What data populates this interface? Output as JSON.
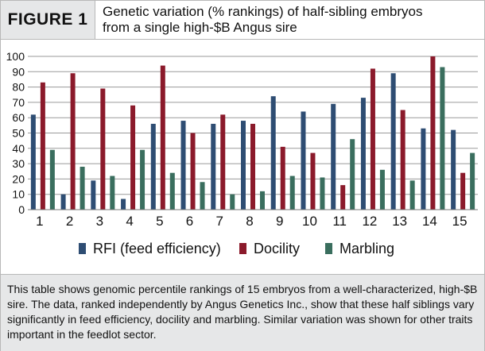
{
  "header": {
    "figure_label": "FIGURE 1",
    "title_line1": "Genetic variation (% rankings) of half-sibling embryos",
    "title_line2": "from a single high-$B Angus sire"
  },
  "caption": {
    "text": "This table shows genomic percentile rankings of 15 embryos from a well-characterized, high-$B sire. The data, ranked independently by Angus Genetics Inc., show that these half siblings vary significantly in feed efficiency, docility and marbling. Similar variation was shown for other traits important in the feedlot sector."
  },
  "chart_data": {
    "type": "bar",
    "categories": [
      "1",
      "2",
      "3",
      "4",
      "5",
      "6",
      "7",
      "8",
      "9",
      "10",
      "11",
      "12",
      "13",
      "14",
      "15"
    ],
    "series": [
      {
        "name": "RFI (feed efficiency)",
        "color": "#2e4d73",
        "values": [
          62,
          10,
          19,
          7,
          56,
          58,
          56,
          58,
          74,
          64,
          69,
          73,
          89,
          53,
          52
        ]
      },
      {
        "name": "Docility",
        "color": "#8b1a2b",
        "values": [
          83,
          89,
          79,
          68,
          94,
          50,
          62,
          56,
          41,
          37,
          16,
          92,
          65,
          100,
          24
        ]
      },
      {
        "name": "Marbling",
        "color": "#3a6e5e",
        "values": [
          39,
          28,
          22,
          39,
          24,
          18,
          10,
          12,
          22,
          21,
          46,
          26,
          19,
          93,
          37
        ]
      }
    ],
    "yticks": [
      0,
      10,
      20,
      30,
      40,
      50,
      60,
      70,
      80,
      90,
      100
    ],
    "ylim": [
      0,
      100
    ],
    "grid": true,
    "legend_position": "bottom"
  }
}
